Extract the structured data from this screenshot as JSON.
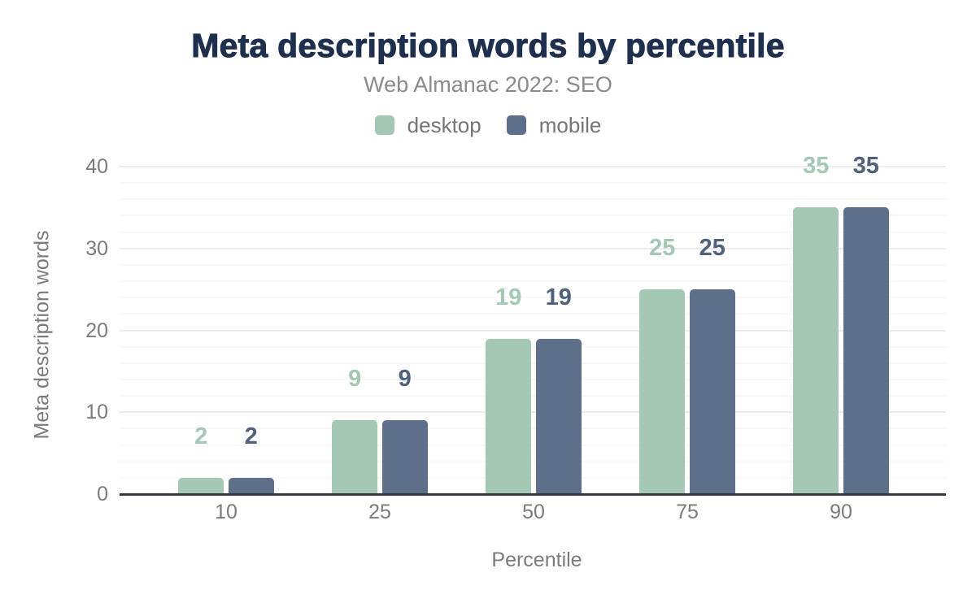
{
  "header": {
    "title": "Meta description words by percentile",
    "subtitle": "Web Almanac 2022: SEO"
  },
  "colors": {
    "title_text": "#1f2f4e",
    "subtitle_text": "#8a8a8a",
    "axis_text": "#7b7b7b",
    "axis_line": "#35393f",
    "gridline_major": "#ececec",
    "gridline_minor": "#f8f8f8",
    "desktop_series": "#a4c8b3",
    "mobile_series": "#5e7089",
    "mobile_value_label": "#50617b"
  },
  "chart_data": {
    "type": "bar",
    "title": "Meta description words by percentile",
    "subtitle": "Web Almanac 2022: SEO",
    "categories": [
      "10",
      "25",
      "50",
      "75",
      "90"
    ],
    "series": [
      {
        "name": "desktop",
        "color": "#a4c8b3",
        "label_color": "#a4c8b3",
        "values": [
          2,
          9,
          19,
          25,
          35
        ]
      },
      {
        "name": "mobile",
        "color": "#5e7089",
        "label_color": "#50617b",
        "values": [
          2,
          9,
          19,
          25,
          35
        ]
      }
    ],
    "xlabel": "Percentile",
    "ylabel": "Meta description words",
    "ylim": [
      0,
      40
    ],
    "yticks": [
      0,
      10,
      20,
      30,
      40
    ],
    "ytick_step": 10,
    "minor_gridline_step": 2,
    "grid": true,
    "legend_position": "top",
    "value_labels": true
  }
}
